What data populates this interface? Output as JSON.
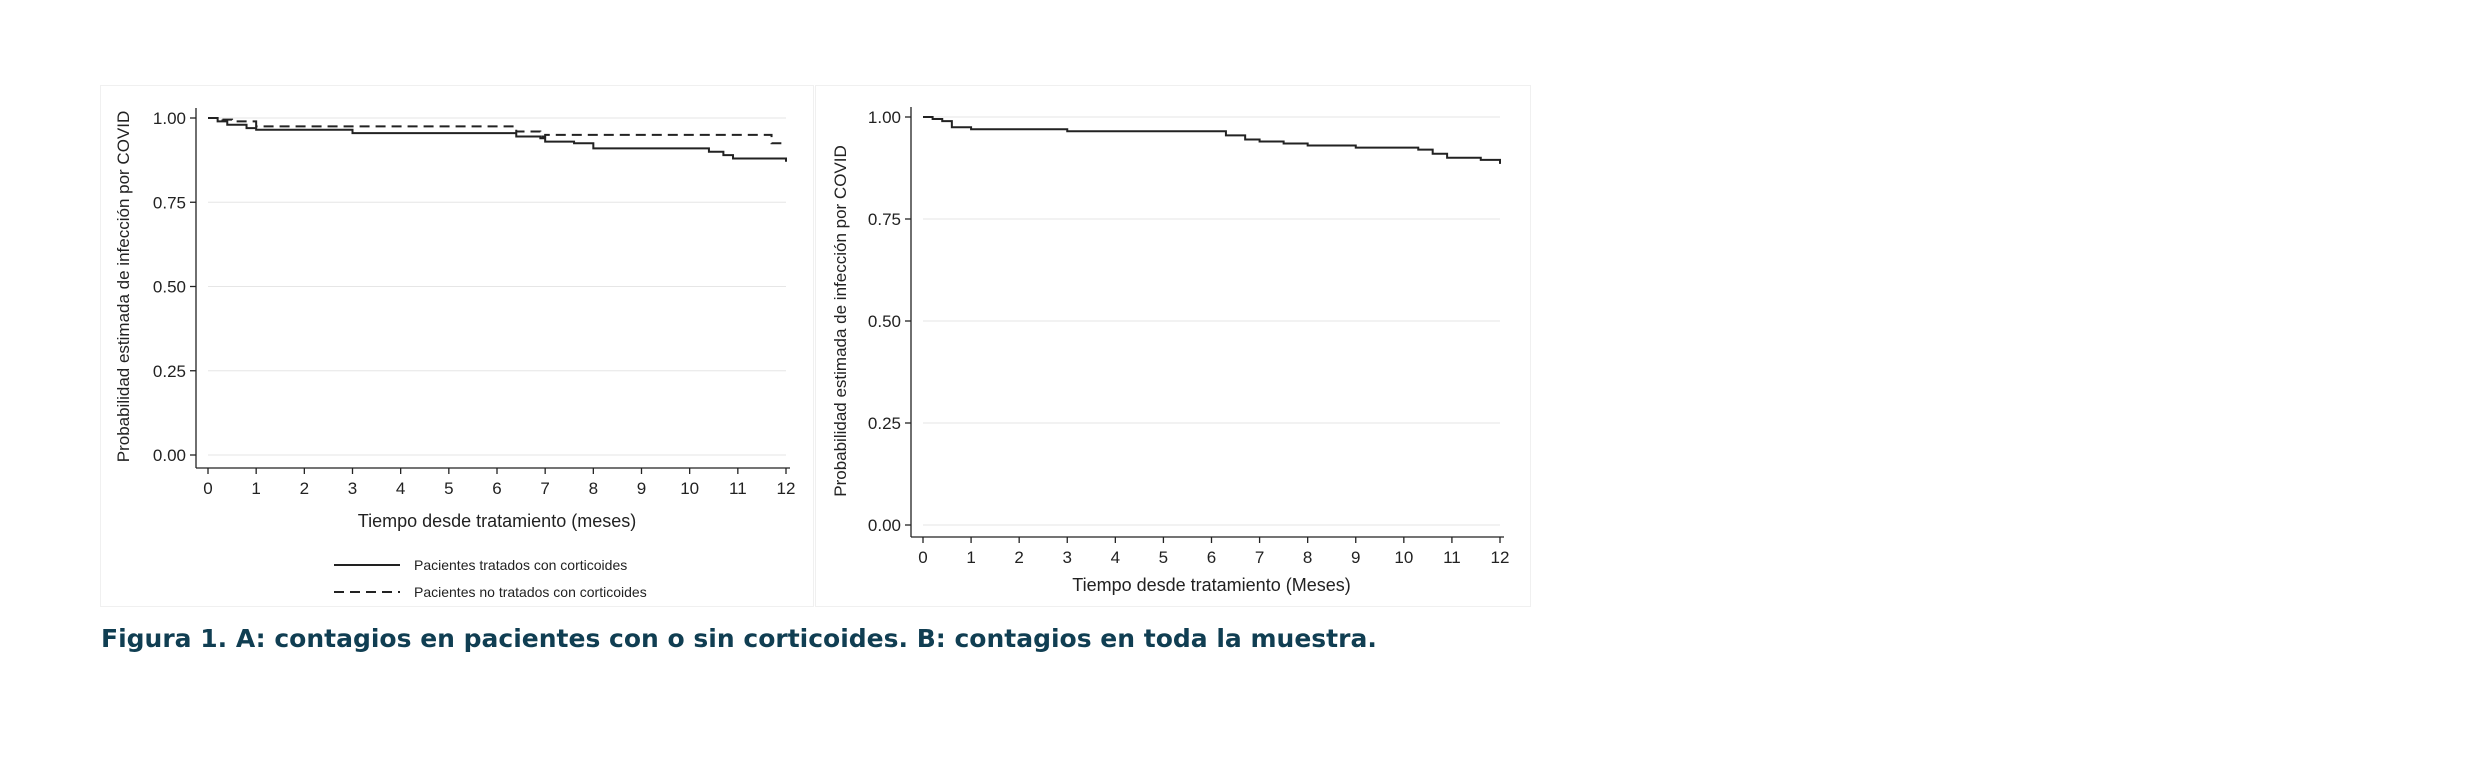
{
  "caption": "Figura 1. A: contagios en pacientes con o sin corticoides. B: contagios en toda la muestra.",
  "colors": {
    "caption": "#103e52",
    "lines": "#222222",
    "grid": "#e6e6e6"
  },
  "chart_data": [
    {
      "type": "line",
      "xlabel": "Tiempo desde tratamiento (meses)",
      "ylabel": "Probabilidad estimada de infección por COVID",
      "x_ticks": [
        "0",
        "1",
        "2",
        "3",
        "4",
        "5",
        "6",
        "7",
        "8",
        "9",
        "10",
        "11",
        "12"
      ],
      "y_ticks": [
        "0.00",
        "0.25",
        "0.50",
        "0.75",
        "1.00"
      ],
      "xlim": [
        0,
        12
      ],
      "ylim": [
        0,
        1
      ],
      "grid": true,
      "legend_position": "bottom",
      "series": [
        {
          "name": "Pacientes tratados con corticoides",
          "style": "solid",
          "x": [
            0,
            0.2,
            0.4,
            0.8,
            1.0,
            2.0,
            3.0,
            5.0,
            6.4,
            6.9,
            7.0,
            7.6,
            8.0,
            9.0,
            10.0,
            10.4,
            10.7,
            10.9,
            11.3,
            12.0
          ],
          "y": [
            1.0,
            0.99,
            0.98,
            0.97,
            0.965,
            0.965,
            0.955,
            0.955,
            0.945,
            0.94,
            0.93,
            0.925,
            0.91,
            0.91,
            0.91,
            0.9,
            0.89,
            0.88,
            0.88,
            0.87
          ]
        },
        {
          "name": "Pacientes no tratados con corticoides",
          "style": "dashed",
          "x": [
            0,
            0.3,
            0.5,
            1.0,
            2.0,
            3.0,
            6.4,
            6.9,
            7.0,
            11.0,
            11.6,
            11.7,
            12.0
          ],
          "y": [
            1.0,
            0.995,
            0.99,
            0.975,
            0.975,
            0.975,
            0.96,
            0.945,
            0.95,
            0.95,
            0.95,
            0.925,
            0.925
          ]
        }
      ]
    },
    {
      "type": "line",
      "xlabel": "Tiempo desde tratamiento (Meses)",
      "ylabel": "Probabilidad estimada de infección por COVID",
      "x_ticks": [
        "0",
        "1",
        "2",
        "3",
        "4",
        "5",
        "6",
        "7",
        "8",
        "9",
        "10",
        "11",
        "12"
      ],
      "y_ticks": [
        "0.00",
        "0.25",
        "0.50",
        "0.75",
        "1.00"
      ],
      "xlim": [
        0,
        12
      ],
      "ylim": [
        0,
        1
      ],
      "grid": true,
      "series": [
        {
          "style": "solid",
          "x": [
            0,
            0.2,
            0.4,
            0.6,
            1.0,
            2.0,
            3.0,
            4.0,
            5.0,
            6.0,
            6.3,
            6.7,
            7.0,
            7.5,
            8.0,
            9.0,
            10.0,
            10.3,
            10.6,
            10.9,
            11.2,
            11.6,
            12.0
          ],
          "y": [
            1.0,
            0.995,
            0.99,
            0.975,
            0.97,
            0.97,
            0.965,
            0.965,
            0.965,
            0.965,
            0.955,
            0.945,
            0.94,
            0.935,
            0.93,
            0.925,
            0.925,
            0.92,
            0.91,
            0.9,
            0.9,
            0.895,
            0.885
          ]
        }
      ]
    }
  ]
}
